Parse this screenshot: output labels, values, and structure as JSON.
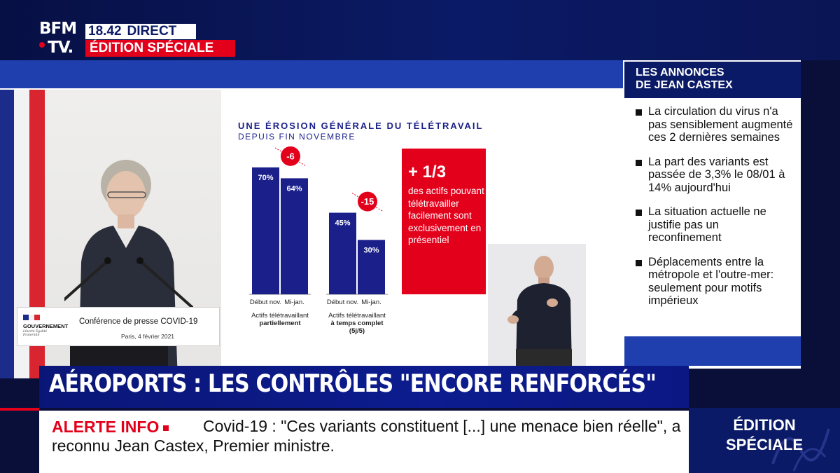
{
  "channel": {
    "logo_line1": "BFM",
    "logo_line2": "TV.",
    "time": "18.42",
    "live_label": "DIRECT",
    "edition_label": "ÉDITION SPÉCIALE"
  },
  "podium": {
    "gov_name": "GOUVERNEMENT",
    "gov_motto": "Liberté Égalité Fraternité",
    "conference_title": "Conférence de presse COVID-19",
    "place_date": "Paris, 4 février 2021"
  },
  "slide": {
    "title": "UNE ÉROSION GÉNÉRALE DU TÉLÉTRAVAIL",
    "subtitle": "DEPUIS FIN NOVEMBRE",
    "callout_headline": "+ 1/3",
    "callout_text": "des actifs pouvant télétravailler facilement sont exclusivement en présentiel"
  },
  "chart_data": {
    "type": "bar",
    "title": "UNE ÉROSION GÉNÉRALE DU TÉLÉTRAVAIL",
    "subtitle": "DEPUIS FIN NOVEMBRE",
    "groups": [
      {
        "label_line1": "Actifs télétravaillant",
        "label_line2": "partiellement",
        "label_line3": "",
        "bars": [
          {
            "category": "Début nov.",
            "value": 70,
            "label": "70%"
          },
          {
            "category": "Mi-jan.",
            "value": 64,
            "label": "64%"
          }
        ],
        "change_label": "-6"
      },
      {
        "label_line1": "Actifs télétravaillant",
        "label_line2": "à temps complet",
        "label_line3": "(5j/5)",
        "bars": [
          {
            "category": "Début nov.",
            "value": 45,
            "label": "45%"
          },
          {
            "category": "Mi-jan.",
            "value": 30,
            "label": "30%"
          }
        ],
        "change_label": "-15"
      }
    ],
    "ylim": [
      0,
      80
    ],
    "bar_color": "#1a1f8a",
    "change_color": "#e3001b"
  },
  "announcements": {
    "header_line1": "LES ANNONCES",
    "header_line2": "DE JEAN CASTEX",
    "items": [
      "La circulation du virus n'a pas sensiblement augmenté ces 2 dernières semaines",
      "La part des variants est passée de 3,3% le 08/01 à 14% aujourd'hui",
      "La situation actuelle ne justifie pas un reconfinement",
      "Déplacements entre la métropole et l'outre-mer: seulement pour motifs impérieux"
    ]
  },
  "headline": "AÉROPORTS : LES CONTRÔLES \"ENCORE RENFORCÉS\"",
  "ticker": {
    "label": "ALERTE INFO",
    "text": "Covid-19 : \"Ces variants constituent [...] une menace bien réelle\", a reconnu Jean Castex, Premier ministre."
  },
  "corner_badge": {
    "line1": "ÉDITION",
    "line2": "SPÉCIALE"
  },
  "colors": {
    "bfm_blue": "#0b1a66",
    "bfm_red": "#e3001b",
    "slide_blue": "#1a1f8a"
  }
}
